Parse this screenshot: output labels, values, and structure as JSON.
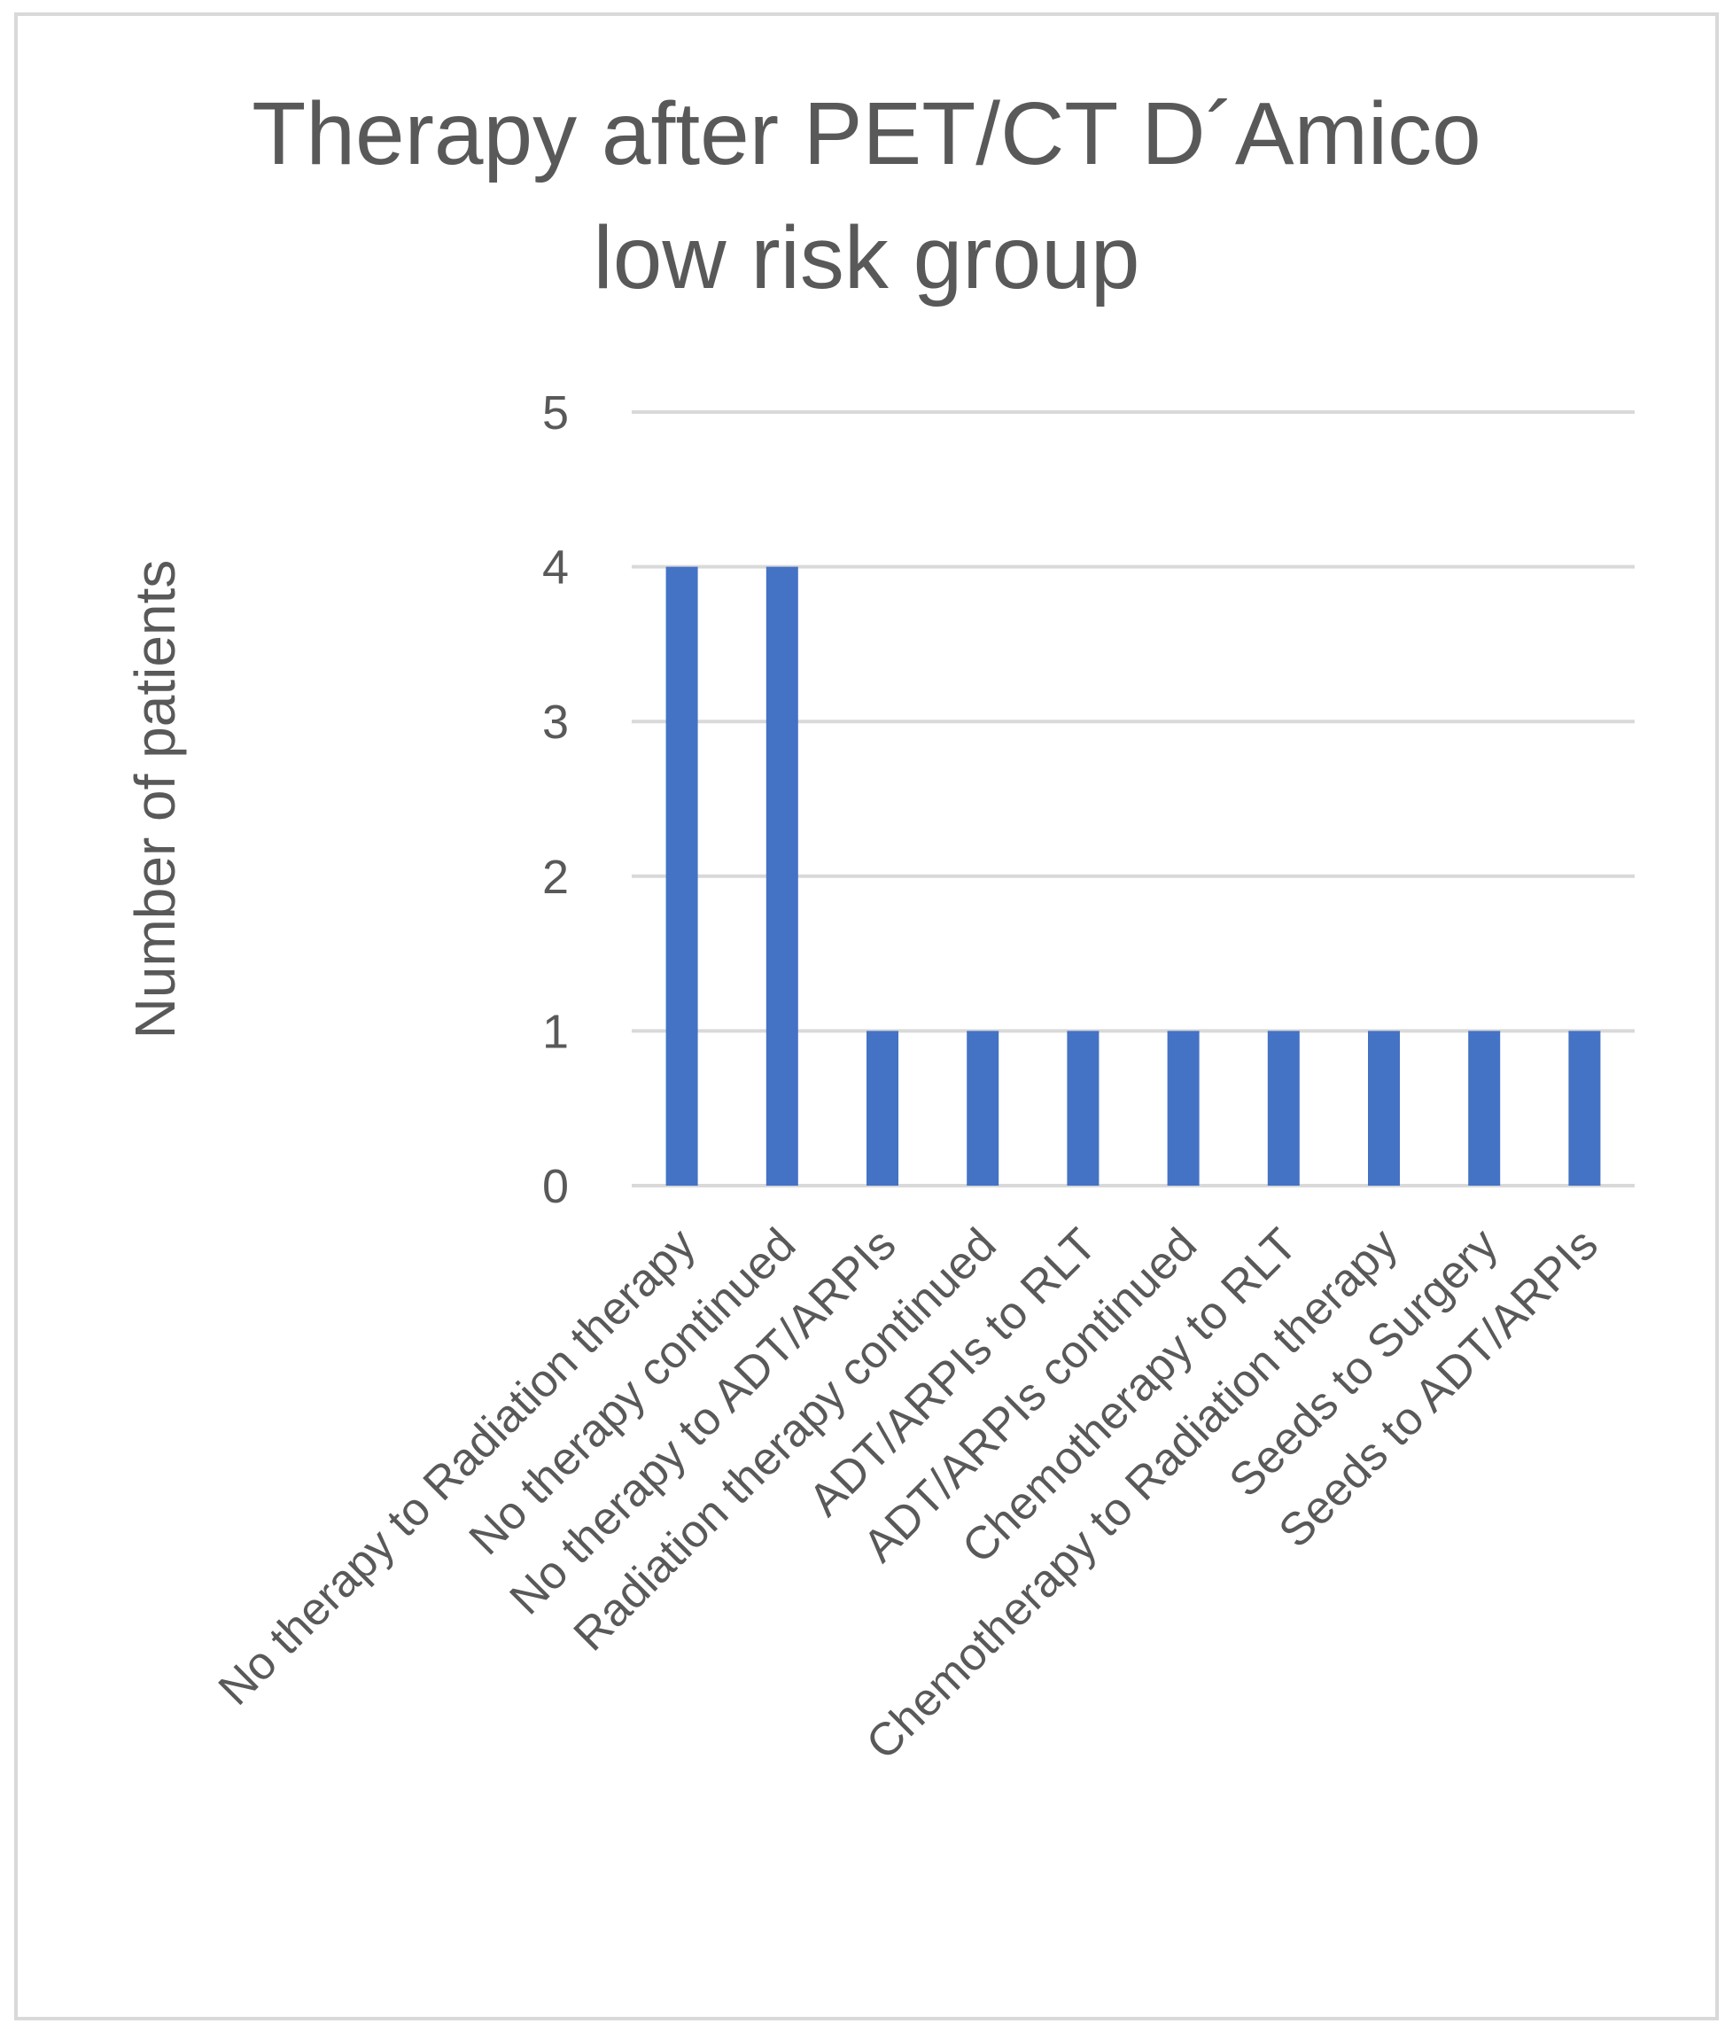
{
  "chart_data": {
    "type": "bar",
    "title_lines": [
      "Therapy after PET/CT D´Amico",
      "low risk group"
    ],
    "xlabel": "",
    "ylabel": "Number of patients",
    "ylim": [
      0,
      5
    ],
    "yticks": [
      0,
      1,
      2,
      3,
      4,
      5
    ],
    "grid": true,
    "legend": "none",
    "categories": [
      "No therapy to Radiation therapy",
      "No therapy continued",
      "No therapy to ADT/ARPIs",
      "Radiation therapy continued",
      "ADT/ARPIs to RLT",
      "ADT/ARPIs continued",
      "Chemotherapy to RLT",
      "Chemotherapy to Radiation therapy",
      "Seeds to Surgery",
      "Seeds to ADT/ARPIs"
    ],
    "values": [
      4,
      4,
      1,
      1,
      1,
      1,
      1,
      1,
      1,
      1
    ],
    "bar_color": "#4472C4",
    "grid_color": "#d9d9d9"
  }
}
